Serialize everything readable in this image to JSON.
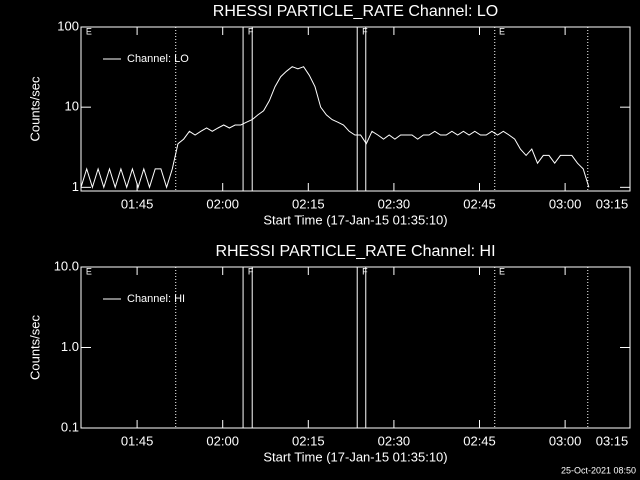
{
  "chart_data": [
    {
      "type": "line",
      "title": "RHESSI PARTICLE_RATE Channel: LO",
      "x_label": "Start Time (17-Jan-15 01:35:10)",
      "y_label": "Counts/sec",
      "xlim": [
        0,
        96.2
      ],
      "xticks": [
        {
          "value": 9.83,
          "label": "01:45"
        },
        {
          "value": 24.83,
          "label": "02:00"
        },
        {
          "value": 39.83,
          "label": "02:15"
        },
        {
          "value": 54.83,
          "label": "02:30"
        },
        {
          "value": 69.83,
          "label": "02:45"
        },
        {
          "value": 84.83,
          "label": "03:00"
        },
        {
          "value": 99.83,
          "label": "03:15"
        }
      ],
      "ylim": [
        0.9,
        100
      ],
      "yticks": [
        1,
        10,
        100
      ],
      "log_y": true,
      "legend": "upper left",
      "dotted_lines": [
        16.6,
        72.5,
        88.8
      ],
      "flag_lines": [
        28.4,
        30.0,
        48.4,
        49.9
      ],
      "flags": [
        {
          "x": 0.5,
          "label": "E"
        },
        {
          "x": 28.9,
          "label": "F"
        },
        {
          "x": 48.9,
          "label": "F"
        },
        {
          "x": 72.9,
          "label": "E"
        }
      ],
      "x": [
        0,
        1,
        2,
        3,
        4,
        5,
        6,
        7,
        8,
        9,
        10,
        11,
        12,
        13,
        14,
        15,
        16,
        17,
        18,
        19,
        20,
        21,
        22,
        23,
        24,
        25,
        26,
        27,
        28,
        29,
        30,
        31,
        32,
        33,
        34,
        35,
        36,
        37,
        38,
        39,
        40,
        41,
        42,
        43,
        44,
        45,
        46,
        47,
        48,
        49,
        50,
        51,
        52,
        53,
        54,
        55,
        56,
        57,
        58,
        59,
        60,
        61,
        62,
        63,
        64,
        65,
        66,
        67,
        68,
        69,
        70,
        71,
        72,
        73,
        74,
        75,
        76,
        77,
        78,
        79,
        80,
        81,
        82,
        83,
        84,
        85,
        86,
        87,
        88,
        89
      ],
      "series": [
        {
          "name": "Channel: LO",
          "color": "#ffffff",
          "values": [
            1,
            1.7,
            1,
            1.7,
            1,
            1.7,
            1,
            1.7,
            1,
            1.7,
            1,
            1.7,
            1,
            1.7,
            1.7,
            1,
            1.7,
            3.5,
            4,
            5,
            4.5,
            5,
            5.5,
            5,
            5.5,
            6,
            5.5,
            6,
            6,
            6.5,
            7,
            8,
            9,
            12,
            18,
            24,
            28,
            32,
            30,
            32,
            25,
            18,
            10,
            8,
            7,
            6.5,
            6,
            5,
            4.5,
            4.5,
            3.5,
            5,
            4.5,
            4,
            4.5,
            4,
            4.5,
            4.5,
            4.5,
            4,
            4.5,
            4.5,
            5,
            4.5,
            4.5,
            5,
            4.5,
            5,
            4.5,
            5,
            4.5,
            4.5,
            5,
            4.5,
            5,
            4.5,
            4,
            3,
            2.5,
            3,
            2,
            2.5,
            2.5,
            2,
            2.5,
            2.5,
            2.5,
            2,
            1.7,
            1
          ]
        }
      ]
    },
    {
      "type": "line",
      "title": "RHESSI PARTICLE_RATE Channel: HI",
      "x_label": "Start Time (17-Jan-15 01:35:10)",
      "y_label": "Counts/sec",
      "xlim": [
        0,
        96.2
      ],
      "xticks": [
        {
          "value": 9.83,
          "label": "01:45"
        },
        {
          "value": 24.83,
          "label": "02:00"
        },
        {
          "value": 39.83,
          "label": "02:15"
        },
        {
          "value": 54.83,
          "label": "02:30"
        },
        {
          "value": 69.83,
          "label": "02:45"
        },
        {
          "value": 84.83,
          "label": "03:00"
        },
        {
          "value": 99.83,
          "label": "03:15"
        }
      ],
      "ylim": [
        0.1,
        10
      ],
      "yticks": [
        {
          "value": 0.1,
          "label": "0.1"
        },
        {
          "value": 1,
          "label": "1.0"
        },
        {
          "value": 10,
          "label": "10.0"
        }
      ],
      "log_y": true,
      "legend": "upper left",
      "dotted_lines": [
        16.6,
        72.5,
        88.8
      ],
      "flag_lines": [
        28.4,
        30.0,
        48.4,
        49.9
      ],
      "flags": [
        {
          "x": 0.5,
          "label": "E"
        },
        {
          "x": 28.9,
          "label": "F"
        },
        {
          "x": 48.9,
          "label": "F"
        },
        {
          "x": 72.9,
          "label": "E"
        }
      ],
      "series": [
        {
          "name": "Channel: HI",
          "color": "#ffffff"
        }
      ]
    }
  ],
  "footer": "25-Oct-2021 08:50"
}
